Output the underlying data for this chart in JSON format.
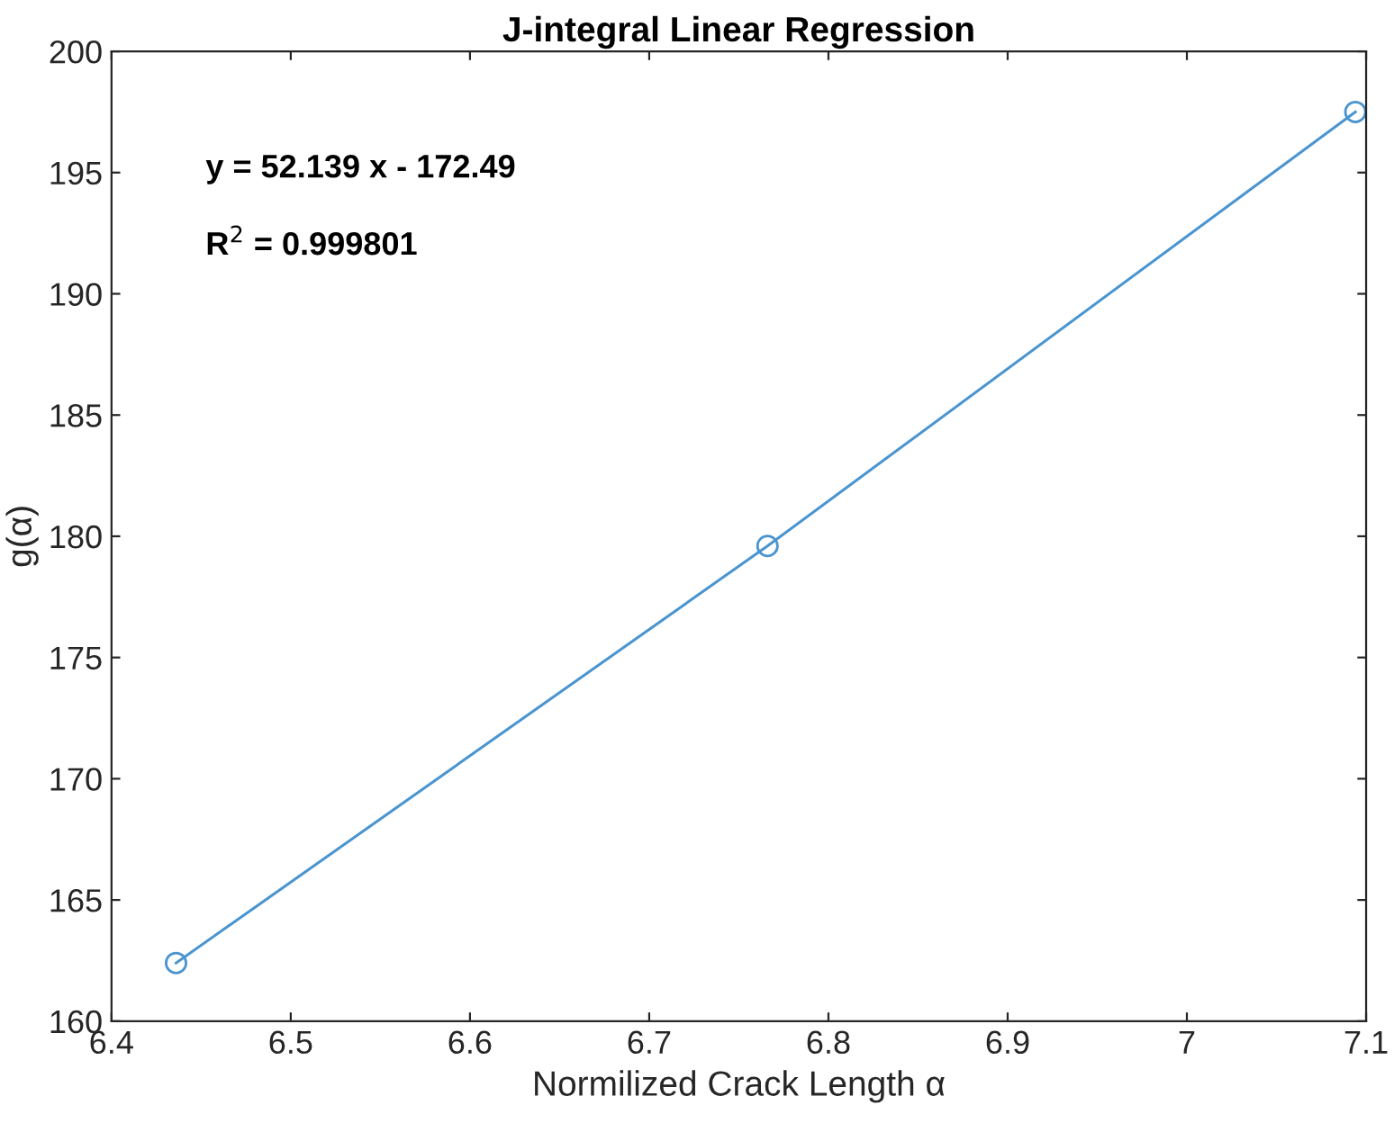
{
  "chart_data": {
    "type": "line",
    "title": "J-integral Linear Regression",
    "xlabel": "Normilized Crack Length α",
    "ylabel": "g(α)",
    "x": [
      6.436,
      6.766,
      7.094
    ],
    "series": [
      {
        "color": "#4a95d0",
        "values": [
          162.4,
          179.6,
          197.5
        ]
      }
    ],
    "marker": "circle",
    "line_style": "solid",
    "xlim": [
      6.4,
      7.1
    ],
    "xticks": [
      6.4,
      6.5,
      6.6,
      6.7,
      6.8,
      6.9,
      7,
      7.1
    ],
    "ylim": [
      160,
      200
    ],
    "yticks": [
      160,
      165,
      170,
      175,
      180,
      185,
      190,
      195,
      200
    ],
    "annotations": [
      "y = 52.139 x - 172.49",
      "R$^{2}$ = 0.999801"
    ],
    "grid": false,
    "legend": false
  }
}
